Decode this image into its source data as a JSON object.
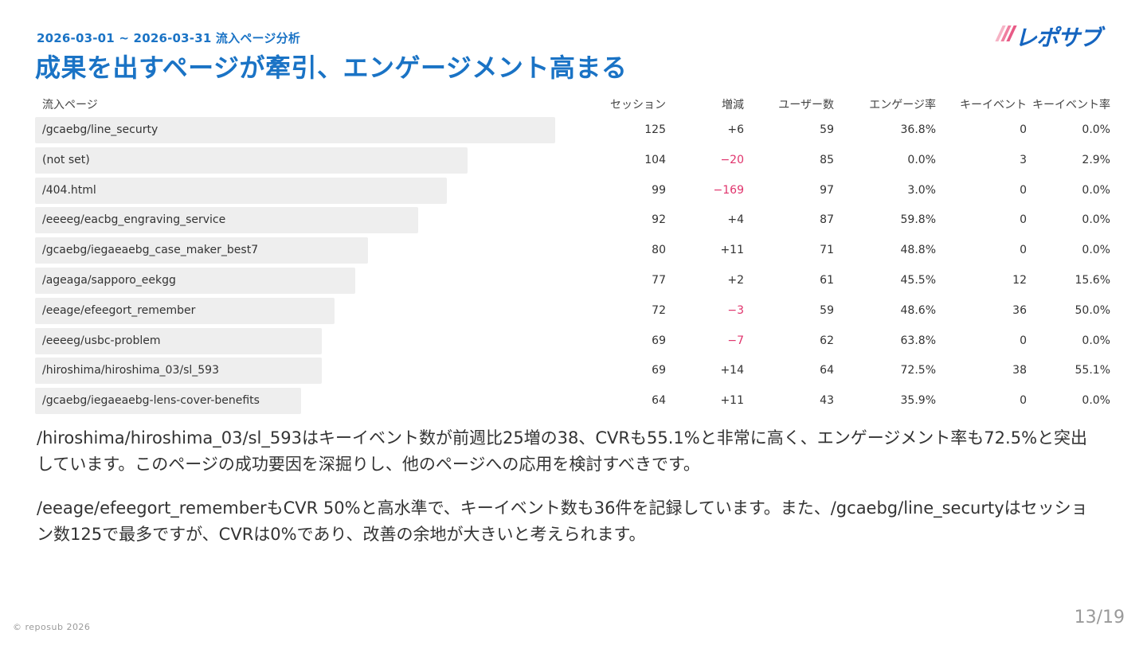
{
  "header": {
    "subtitle": "2026-03-01 ~ 2026-03-31 流入ページ分析",
    "title": "成果を出すページが牽引、エンゲージメント高まる"
  },
  "logo": {
    "text": "レポサブ",
    "stripe_colors": [
      "#f6b3c5",
      "#ef7fa0",
      "#e85a86"
    ],
    "text_color": "#1565c0"
  },
  "table": {
    "headers": {
      "page": "流入ページ",
      "sessions": "セッション",
      "change": "増減",
      "users": "ユーザー数",
      "engagement_rate": "エンゲージ率",
      "key_events": "キーイベント",
      "key_event_rate": "キーイベント率"
    },
    "rows": [
      {
        "page": "/gcaebg/line_securty",
        "sessions": "125",
        "change": "+6",
        "users": "59",
        "engagement_rate": "36.8%",
        "key_events": "0",
        "key_event_rate": "0.0%",
        "bar_fraction": 1.0
      },
      {
        "page": "(not set)",
        "sessions": "104",
        "change": "−20",
        "users": "85",
        "engagement_rate": "0.0%",
        "key_events": "3",
        "key_event_rate": "2.9%",
        "bar_fraction": 0.832
      },
      {
        "page": "/404.html",
        "sessions": "99",
        "change": "−169",
        "users": "97",
        "engagement_rate": "3.0%",
        "key_events": "0",
        "key_event_rate": "0.0%",
        "bar_fraction": 0.792
      },
      {
        "page": "/eeeeg/eacbg_engraving_service",
        "sessions": "92",
        "change": "+4",
        "users": "87",
        "engagement_rate": "59.8%",
        "key_events": "0",
        "key_event_rate": "0.0%",
        "bar_fraction": 0.736
      },
      {
        "page": "/gcaebg/iegaeaebg_case_maker_best7",
        "sessions": "80",
        "change": "+11",
        "users": "71",
        "engagement_rate": "48.8%",
        "key_events": "0",
        "key_event_rate": "0.0%",
        "bar_fraction": 0.64
      },
      {
        "page": "/ageaga/sapporo_eekgg",
        "sessions": "77",
        "change": "+2",
        "users": "61",
        "engagement_rate": "45.5%",
        "key_events": "12",
        "key_event_rate": "15.6%",
        "bar_fraction": 0.616
      },
      {
        "page": "/eeage/efeegort_remember",
        "sessions": "72",
        "change": "−3",
        "users": "59",
        "engagement_rate": "48.6%",
        "key_events": "36",
        "key_event_rate": "50.0%",
        "bar_fraction": 0.576
      },
      {
        "page": "/eeeeg/usbc-problem",
        "sessions": "69",
        "change": "−7",
        "users": "62",
        "engagement_rate": "63.8%",
        "key_events": "0",
        "key_event_rate": "0.0%",
        "bar_fraction": 0.552
      },
      {
        "page": "/hiroshima/hiroshima_03/sl_593",
        "sessions": "69",
        "change": "+14",
        "users": "64",
        "engagement_rate": "72.5%",
        "key_events": "38",
        "key_event_rate": "55.1%",
        "bar_fraction": 0.552
      },
      {
        "page": "/gcaebg/iegaeaebg-lens-cover-benefits",
        "sessions": "64",
        "change": "+11",
        "users": "43",
        "engagement_rate": "35.9%",
        "key_events": "0",
        "key_event_rate": "0.0%",
        "bar_fraction": 0.512
      }
    ]
  },
  "colors": {
    "accent": "#1a73c5",
    "negative": "#e0336c",
    "bar": "#eeeeee"
  },
  "paragraphs": [
    "/hiroshima/hiroshima_03/sl_593はキーイベント数が前週比25増の38、CVRも55.1%と非常に高く、エンゲージメント率も72.5%と突出しています。このページの成功要因を深掘りし、他のページへの応用を検討すべきです。",
    "/eeage/efeegort_rememberもCVR 50%と高水準で、キーイベント数も36件を記録しています。また、/gcaebg/line_securtyはセッション数125で最多ですが、CVRは0%であり、改善の余地が大きいと考えられます。"
  ],
  "footer": {
    "copyright": "© reposub 2026",
    "page_number": "13/19"
  }
}
